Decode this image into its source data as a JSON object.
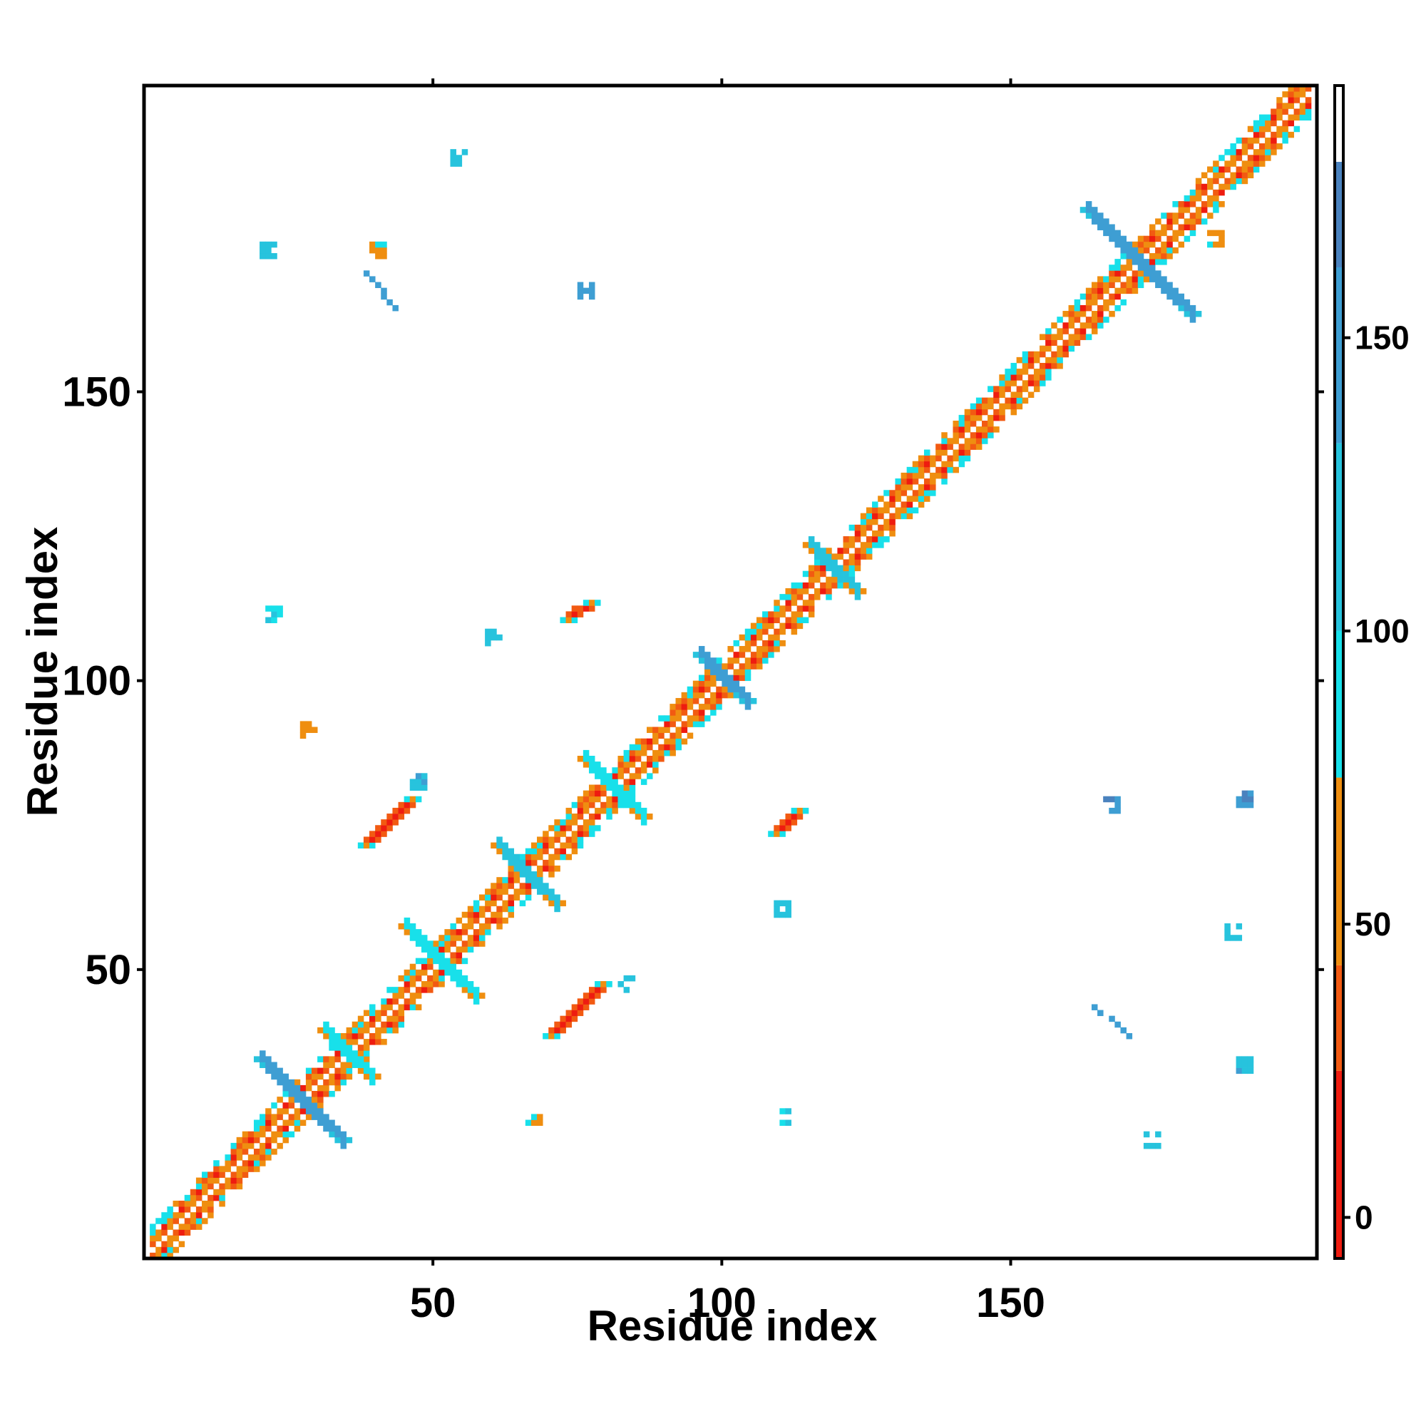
{
  "chart_data": {
    "type": "heatmap",
    "title": "",
    "xlabel": "Residue index",
    "ylabel": "Residue index",
    "xlim": [
      0,
      203
    ],
    "ylim": [
      0,
      203
    ],
    "x_ticks": [
      {
        "value": 50,
        "label": "50"
      },
      {
        "value": 100,
        "label": "100"
      },
      {
        "value": 150,
        "label": "150"
      }
    ],
    "y_ticks": [
      {
        "value": 50,
        "label": "50"
      },
      {
        "value": 100,
        "label": "100"
      },
      {
        "value": 150,
        "label": "150"
      }
    ],
    "colorbar": {
      "range": [
        -7,
        193
      ],
      "ticks": [
        {
          "value": 0,
          "label": "0"
        },
        {
          "value": 50,
          "label": "50"
        },
        {
          "value": 100,
          "label": "100"
        },
        {
          "value": 150,
          "label": "150"
        }
      ],
      "bins": [
        {
          "from": -7,
          "to": 25,
          "color": "#ee1c10"
        },
        {
          "from": 25,
          "to": 43,
          "color": "#f25a12"
        },
        {
          "from": 43,
          "to": 75,
          "color": "#ef8e10"
        },
        {
          "from": 75,
          "to": 100,
          "color": "#18e0ea"
        },
        {
          "from": 100,
          "to": 132,
          "color": "#27c3dd"
        },
        {
          "from": 132,
          "to": 162,
          "color": "#3e9ed3"
        },
        {
          "from": 162,
          "to": 180,
          "color": "#4a82be"
        },
        {
          "from": 180,
          "to": 193,
          "color": "#ffffff"
        }
      ]
    },
    "grid": false,
    "legend": "right colorbar",
    "regions": [
      {
        "kind": "diagonal",
        "from": 1,
        "to": 202
      },
      {
        "kind": "cross",
        "cx": 27,
        "cy": 27,
        "halfwidth": 7,
        "value": 160
      },
      {
        "kind": "cross",
        "cx": 172,
        "cy": 172,
        "halfwidth": 9,
        "value": 160
      },
      {
        "kind": "cross",
        "cx": 100,
        "cy": 100,
        "halfwidth": 4,
        "value": 150
      },
      {
        "kind": "cross",
        "cx": 119,
        "cy": 119,
        "halfwidth": 4,
        "value": 100
      },
      {
        "kind": "cross",
        "cx": 66,
        "cy": 66,
        "halfwidth": 5,
        "value": 100
      },
      {
        "kind": "cross",
        "cx": 51,
        "cy": 51,
        "halfwidth": 6,
        "value": 90
      },
      {
        "kind": "cross",
        "cx": 81,
        "cy": 81,
        "halfwidth": 5,
        "value": 90
      },
      {
        "kind": "cross",
        "cx": 35,
        "cy": 35,
        "halfwidth": 4,
        "value": 95
      },
      {
        "kind": "strand",
        "x1": 37,
        "y1": 171,
        "x2": 44,
        "y2": 163,
        "value": 160
      },
      {
        "kind": "strand",
        "x1": 163,
        "y1": 44,
        "x2": 171,
        "y2": 37,
        "value": 160
      },
      {
        "kind": "strand",
        "x1": 38,
        "y1": 71,
        "x2": 46,
        "y2": 79,
        "value": 20
      },
      {
        "kind": "strand",
        "x1": 70,
        "y1": 38,
        "x2": 79,
        "y2": 47,
        "value": 20
      },
      {
        "kind": "strand",
        "x1": 73,
        "y1": 110,
        "x2": 77,
        "y2": 113,
        "value": 15
      },
      {
        "kind": "strand",
        "x1": 109,
        "y1": 73,
        "x2": 113,
        "y2": 77,
        "value": 15
      },
      {
        "kind": "blob",
        "x": 21,
        "y": 174,
        "value": 100
      },
      {
        "kind": "blob",
        "x": 174,
        "y": 20,
        "value": 100
      },
      {
        "kind": "blob",
        "x": 22,
        "y": 111,
        "value": 90
      },
      {
        "kind": "blob",
        "x": 111,
        "y": 24,
        "value": 90
      },
      {
        "kind": "blob",
        "x": 40,
        "y": 174,
        "value": 55
      },
      {
        "kind": "blob",
        "x": 76,
        "y": 167,
        "value": 140
      },
      {
        "kind": "blob",
        "x": 54,
        "y": 190,
        "value": 100
      },
      {
        "kind": "blob",
        "x": 188,
        "y": 56,
        "value": 100
      },
      {
        "kind": "blob",
        "x": 83,
        "y": 47,
        "value": 110
      },
      {
        "kind": "blob",
        "x": 110,
        "y": 60,
        "value": 110
      },
      {
        "kind": "blob",
        "x": 60,
        "y": 107,
        "value": 110
      },
      {
        "kind": "blob",
        "x": 190,
        "y": 79,
        "value": 150
      },
      {
        "kind": "blob",
        "x": 167,
        "y": 78,
        "value": 150
      },
      {
        "kind": "blob",
        "x": 190,
        "y": 33,
        "value": 130
      },
      {
        "kind": "blob",
        "x": 67,
        "y": 24,
        "value": 55
      },
      {
        "kind": "blob",
        "x": 185,
        "y": 176,
        "value": 55
      },
      {
        "kind": "blob",
        "x": 28,
        "y": 91,
        "value": 50
      },
      {
        "kind": "blob",
        "x": 47,
        "y": 82,
        "value": 120
      }
    ]
  }
}
